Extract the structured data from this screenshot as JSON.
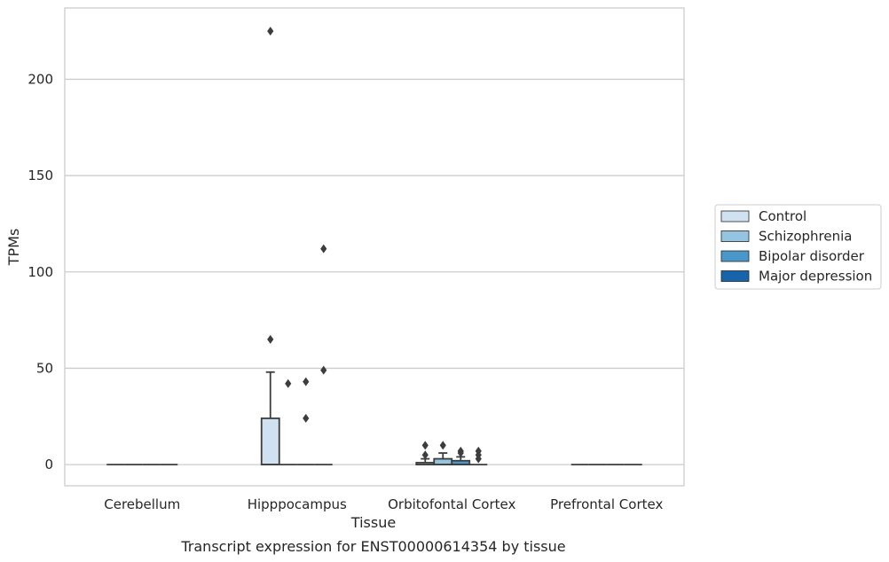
{
  "chart_data": {
    "type": "box",
    "title": "",
    "caption": "Transcript expression for ENST00000614354 by tissue",
    "xlabel": "Tissue",
    "ylabel": "TPMs",
    "ylim": [
      -11,
      237
    ],
    "yticks": [
      0,
      50,
      100,
      150,
      200
    ],
    "grid": "horizontal",
    "legend_position": "right",
    "categories": [
      "Cerebellum",
      "Hipppocampus",
      "Orbitofontal Cortex",
      "Prefrontal Cortex"
    ],
    "series": [
      {
        "name": "Control",
        "color": "#d0e1f2",
        "boxes": [
          {
            "category": "Cerebellum",
            "q1": 0,
            "median": 0,
            "q3": 0,
            "whisker_low": 0,
            "whisker_high": 0,
            "outliers": []
          },
          {
            "category": "Hipppocampus",
            "q1": 0,
            "median": 0,
            "q3": 24,
            "whisker_low": 0,
            "whisker_high": 48,
            "outliers": [
              225,
              65
            ]
          },
          {
            "category": "Orbitofontal Cortex",
            "q1": 0,
            "median": 0,
            "q3": 1,
            "whisker_low": 0,
            "whisker_high": 3,
            "outliers": [
              10,
              5
            ]
          },
          {
            "category": "Prefrontal Cortex",
            "q1": 0,
            "median": 0,
            "q3": 0,
            "whisker_low": 0,
            "whisker_high": 0,
            "outliers": []
          }
        ]
      },
      {
        "name": "Schizophrenia",
        "color": "#94c4df",
        "boxes": [
          {
            "category": "Cerebellum",
            "q1": 0,
            "median": 0,
            "q3": 0,
            "whisker_low": 0,
            "whisker_high": 0,
            "outliers": []
          },
          {
            "category": "Hipppocampus",
            "q1": 0,
            "median": 0,
            "q3": 0,
            "whisker_low": 0,
            "whisker_high": 0,
            "outliers": [
              42
            ]
          },
          {
            "category": "Orbitofontal Cortex",
            "q1": 0,
            "median": 0,
            "q3": 3,
            "whisker_low": 0,
            "whisker_high": 6,
            "outliers": [
              10
            ]
          },
          {
            "category": "Prefrontal Cortex",
            "q1": 0,
            "median": 0,
            "q3": 0,
            "whisker_low": 0,
            "whisker_high": 0,
            "outliers": []
          }
        ]
      },
      {
        "name": "Bipolar disorder",
        "color": "#4a98c9",
        "boxes": [
          {
            "category": "Cerebellum",
            "q1": 0,
            "median": 0,
            "q3": 0,
            "whisker_low": 0,
            "whisker_high": 0,
            "outliers": []
          },
          {
            "category": "Hipppocampus",
            "q1": 0,
            "median": 0,
            "q3": 0,
            "whisker_low": 0,
            "whisker_high": 0,
            "outliers": [
              43,
              24
            ]
          },
          {
            "category": "Orbitofontal Cortex",
            "q1": 0,
            "median": 0,
            "q3": 2,
            "whisker_low": 0,
            "whisker_high": 4,
            "outliers": [
              7,
              6
            ]
          },
          {
            "category": "Prefrontal Cortex",
            "q1": 0,
            "median": 0,
            "q3": 0,
            "whisker_low": 0,
            "whisker_high": 0,
            "outliers": []
          }
        ]
      },
      {
        "name": "Major depression",
        "color": "#1764ab",
        "boxes": [
          {
            "category": "Cerebellum",
            "q1": 0,
            "median": 0,
            "q3": 0,
            "whisker_low": 0,
            "whisker_high": 0,
            "outliers": []
          },
          {
            "category": "Hipppocampus",
            "q1": 0,
            "median": 0,
            "q3": 0,
            "whisker_low": 0,
            "whisker_high": 0,
            "outliers": [
              112,
              49
            ]
          },
          {
            "category": "Orbitofontal Cortex",
            "q1": 0,
            "median": 0,
            "q3": 0,
            "whisker_low": 0,
            "whisker_high": 0,
            "outliers": [
              7,
              5,
              3
            ]
          },
          {
            "category": "Prefrontal Cortex",
            "q1": 0,
            "median": 0,
            "q3": 0,
            "whisker_low": 0,
            "whisker_high": 0,
            "outliers": []
          }
        ]
      }
    ]
  }
}
